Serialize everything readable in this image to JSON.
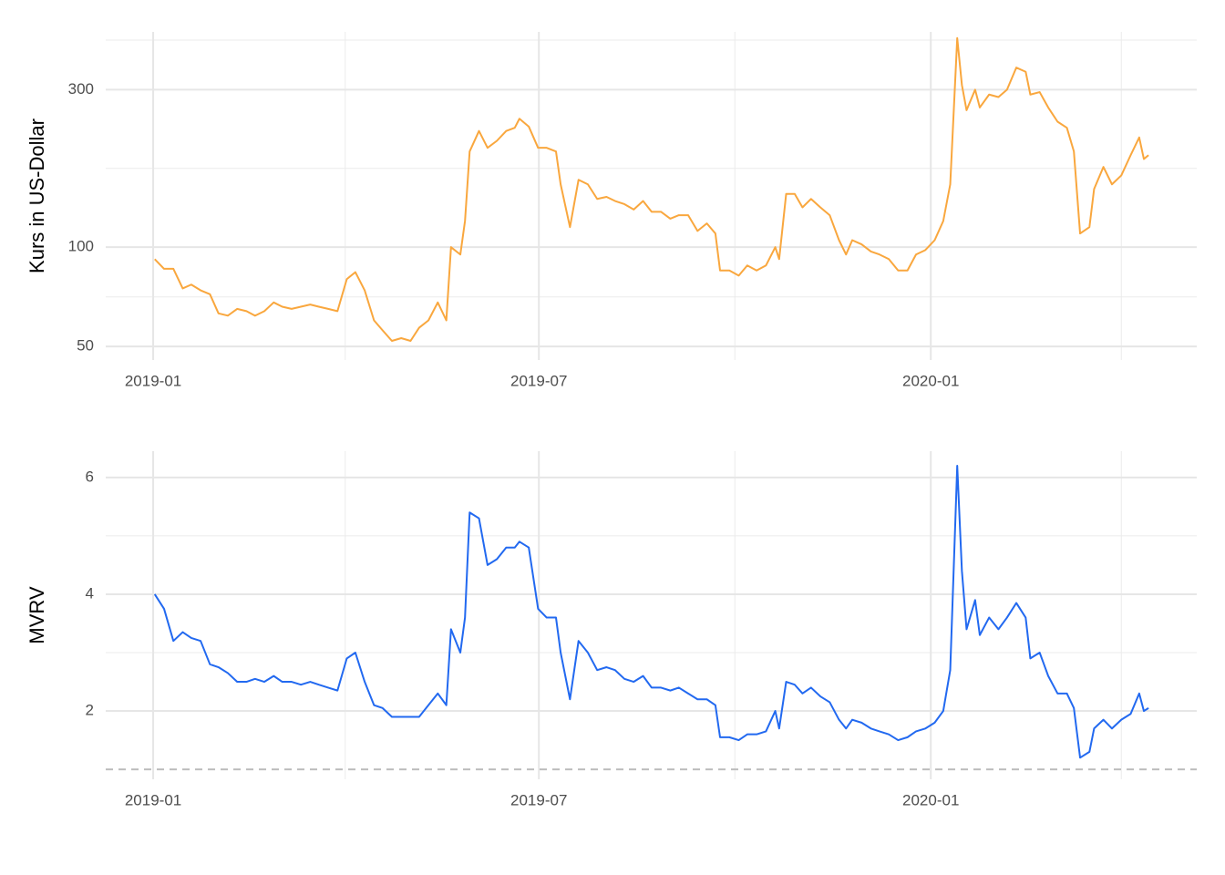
{
  "chart_data": [
    {
      "type": "line",
      "y_label": "Kurs in US-Dollar",
      "log_scale": true,
      "grid": true,
      "color": "#F9A73E",
      "xlim": [
        2018.939,
        2020.342
      ],
      "xticks": [
        {
          "value": 2019.0,
          "label": "2019-01"
        },
        {
          "value": 2019.496,
          "label": "2019-07"
        },
        {
          "value": 2020.0,
          "label": "2020-01"
        }
      ],
      "xminor": [
        2019.247,
        2019.748,
        2020.245
      ],
      "ylim": [
        45.5,
        449
      ],
      "yticks": [
        50,
        100,
        300
      ],
      "yminor": [
        70.7,
        173.2,
        424
      ],
      "x": [
        2019.002,
        2019.014,
        2019.026,
        2019.038,
        2019.049,
        2019.061,
        2019.073,
        2019.084,
        2019.096,
        2019.108,
        2019.12,
        2019.131,
        2019.143,
        2019.155,
        2019.166,
        2019.178,
        2019.19,
        2019.202,
        2019.213,
        2019.225,
        2019.237,
        2019.249,
        2019.26,
        2019.272,
        2019.284,
        2019.295,
        2019.307,
        2019.319,
        2019.331,
        2019.342,
        2019.354,
        2019.366,
        2019.377,
        2019.383,
        2019.395,
        2019.401,
        2019.407,
        2019.419,
        2019.43,
        2019.442,
        2019.454,
        2019.465,
        2019.471,
        2019.483,
        2019.495,
        2019.506,
        2019.518,
        2019.524,
        2019.536,
        2019.547,
        2019.559,
        2019.571,
        2019.583,
        2019.594,
        2019.606,
        2019.618,
        2019.63,
        2019.641,
        2019.653,
        2019.665,
        2019.676,
        2019.688,
        2019.7,
        2019.712,
        2019.723,
        2019.729,
        2019.741,
        2019.753,
        2019.764,
        2019.776,
        2019.788,
        2019.8,
        2019.805,
        2019.814,
        2019.825,
        2019.835,
        2019.846,
        2019.858,
        2019.87,
        2019.882,
        2019.891,
        2019.899,
        2019.911,
        2019.923,
        2019.934,
        2019.946,
        2019.958,
        2019.97,
        2019.981,
        2019.993,
        2020.005,
        2020.016,
        2020.025,
        2020.034,
        2020.04,
        2020.046,
        2020.057,
        2020.063,
        2020.075,
        2020.087,
        2020.098,
        2020.11,
        2020.122,
        2020.128,
        2020.14,
        2020.151,
        2020.163,
        2020.175,
        2020.184,
        2020.192,
        2020.204,
        2020.21,
        2020.222,
        2020.233,
        2020.245,
        2020.257,
        2020.268,
        2020.274,
        2020.28
      ],
      "values": [
        92,
        86,
        86,
        75,
        77,
        74,
        72,
        63,
        62,
        65,
        64,
        62,
        64,
        68,
        66,
        65,
        66,
        67,
        66,
        65,
        64,
        80,
        84,
        74,
        60,
        56,
        52,
        53,
        52,
        57,
        60,
        68,
        60,
        100,
        95,
        120,
        195,
        225,
        200,
        210,
        225,
        230,
        245,
        232,
        200,
        200,
        195,
        155,
        115,
        160,
        155,
        140,
        142,
        138,
        135,
        130,
        138,
        128,
        128,
        122,
        125,
        125,
        112,
        118,
        110,
        85,
        85,
        82,
        88,
        85,
        88,
        100,
        92,
        145,
        145,
        132,
        140,
        132,
        125,
        105,
        95,
        105,
        102,
        97,
        95,
        92,
        85,
        85,
        95,
        98,
        105,
        120,
        155,
        430,
        310,
        260,
        300,
        265,
        290,
        285,
        300,
        350,
        340,
        290,
        295,
        265,
        240,
        230,
        195,
        110,
        115,
        150,
        175,
        155,
        165,
        190,
        215,
        185,
        190
      ]
    },
    {
      "type": "line",
      "y_label": "MVRV",
      "log_scale": false,
      "grid": true,
      "color": "#2269F0",
      "xlim": [
        2018.939,
        2020.342
      ],
      "xticks": [
        {
          "value": 2019.0,
          "label": "2019-01"
        },
        {
          "value": 2019.496,
          "label": "2019-07"
        },
        {
          "value": 2020.0,
          "label": "2020-01"
        }
      ],
      "xminor": [
        2019.247,
        2019.748,
        2020.245
      ],
      "ylim": [
        0.83,
        6.45
      ],
      "yticks": [
        2,
        4,
        6
      ],
      "yminor": [
        3,
        5
      ],
      "hline": 1,
      "x": [
        2019.002,
        2019.014,
        2019.026,
        2019.038,
        2019.049,
        2019.061,
        2019.073,
        2019.084,
        2019.096,
        2019.108,
        2019.12,
        2019.131,
        2019.143,
        2019.155,
        2019.166,
        2019.178,
        2019.19,
        2019.202,
        2019.213,
        2019.225,
        2019.237,
        2019.249,
        2019.26,
        2019.272,
        2019.284,
        2019.295,
        2019.307,
        2019.319,
        2019.331,
        2019.342,
        2019.354,
        2019.366,
        2019.377,
        2019.383,
        2019.395,
        2019.401,
        2019.407,
        2019.419,
        2019.43,
        2019.442,
        2019.454,
        2019.465,
        2019.471,
        2019.483,
        2019.495,
        2019.506,
        2019.518,
        2019.524,
        2019.536,
        2019.547,
        2019.559,
        2019.571,
        2019.583,
        2019.594,
        2019.606,
        2019.618,
        2019.63,
        2019.641,
        2019.653,
        2019.665,
        2019.676,
        2019.688,
        2019.7,
        2019.712,
        2019.723,
        2019.729,
        2019.741,
        2019.753,
        2019.764,
        2019.776,
        2019.788,
        2019.8,
        2019.805,
        2019.814,
        2019.825,
        2019.835,
        2019.846,
        2019.858,
        2019.87,
        2019.882,
        2019.891,
        2019.899,
        2019.911,
        2019.923,
        2019.934,
        2019.946,
        2019.958,
        2019.97,
        2019.981,
        2019.993,
        2020.005,
        2020.016,
        2020.025,
        2020.034,
        2020.04,
        2020.046,
        2020.057,
        2020.063,
        2020.075,
        2020.087,
        2020.098,
        2020.11,
        2020.122,
        2020.128,
        2020.14,
        2020.151,
        2020.163,
        2020.175,
        2020.184,
        2020.192,
        2020.204,
        2020.21,
        2020.222,
        2020.233,
        2020.245,
        2020.257,
        2020.268,
        2020.274,
        2020.28
      ],
      "values": [
        4.0,
        3.75,
        3.2,
        3.35,
        3.25,
        3.2,
        2.8,
        2.75,
        2.65,
        2.5,
        2.5,
        2.55,
        2.5,
        2.6,
        2.5,
        2.5,
        2.45,
        2.5,
        2.45,
        2.4,
        2.35,
        2.9,
        3.0,
        2.5,
        2.1,
        2.05,
        1.9,
        1.9,
        1.9,
        1.9,
        2.1,
        2.3,
        2.1,
        3.4,
        3.0,
        3.6,
        5.4,
        5.3,
        4.5,
        4.6,
        4.8,
        4.8,
        4.9,
        4.8,
        3.75,
        3.6,
        3.6,
        3.0,
        2.2,
        3.2,
        3.0,
        2.7,
        2.75,
        2.7,
        2.55,
        2.5,
        2.6,
        2.4,
        2.4,
        2.35,
        2.4,
        2.3,
        2.2,
        2.2,
        2.1,
        1.55,
        1.55,
        1.5,
        1.6,
        1.6,
        1.65,
        2.0,
        1.7,
        2.5,
        2.45,
        2.3,
        2.4,
        2.25,
        2.15,
        1.85,
        1.7,
        1.85,
        1.8,
        1.7,
        1.65,
        1.6,
        1.5,
        1.55,
        1.65,
        1.7,
        1.8,
        2.0,
        2.7,
        6.2,
        4.4,
        3.4,
        3.9,
        3.3,
        3.6,
        3.4,
        3.6,
        3.85,
        3.6,
        2.9,
        3.0,
        2.6,
        2.3,
        2.3,
        2.05,
        1.2,
        1.3,
        1.7,
        1.85,
        1.7,
        1.85,
        1.95,
        2.3,
        2.0,
        2.05
      ]
    }
  ]
}
